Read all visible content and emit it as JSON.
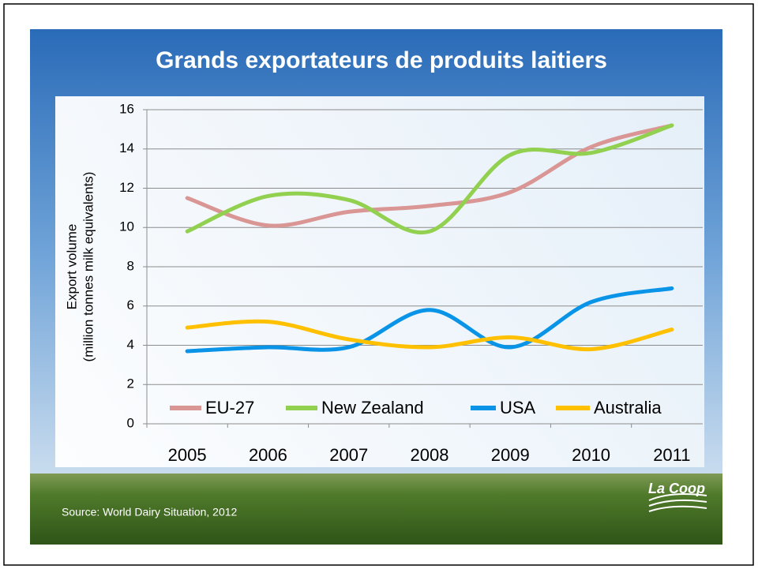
{
  "chart_data": {
    "type": "line",
    "title": "Grands exportateurs de produits laitiers",
    "ylabel": [
      "Export volume",
      "(million tonnes milk equivalents)"
    ],
    "categories": [
      "2005",
      "2006",
      "2007",
      "2008",
      "2009",
      "2010",
      "2011"
    ],
    "series": [
      {
        "name": "EU-27",
        "color": "#d99694",
        "values": [
          11.5,
          10.1,
          10.8,
          11.1,
          11.8,
          14.1,
          15.2
        ]
      },
      {
        "name": "New Zealand",
        "color": "#92d050",
        "values": [
          9.8,
          11.6,
          11.4,
          9.8,
          13.7,
          13.8,
          15.2
        ]
      },
      {
        "name": "USA",
        "color": "#0a94e8",
        "values": [
          3.7,
          3.9,
          3.9,
          5.8,
          3.9,
          6.2,
          6.9
        ]
      },
      {
        "name": "Australia",
        "color": "#ffc000",
        "values": [
          4.9,
          5.2,
          4.3,
          3.9,
          4.4,
          3.8,
          4.8
        ]
      }
    ],
    "ylim": [
      0,
      16
    ],
    "yticks": [
      0,
      2,
      4,
      6,
      8,
      10,
      12,
      14,
      16
    ],
    "grid": true,
    "legend": "bottom",
    "source": "Source: World Dairy Situation, 2012",
    "logo": "La Coop"
  }
}
